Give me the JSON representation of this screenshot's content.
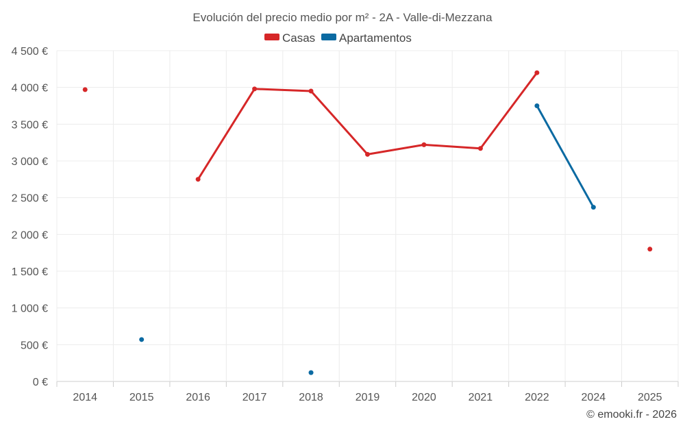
{
  "chart_data": {
    "type": "line",
    "title": "Evolución del precio medio por m² - 2A - Valle-di-Mezzana",
    "categories": [
      "2014",
      "2015",
      "2016",
      "2017",
      "2018",
      "2019",
      "2020",
      "2021",
      "2022",
      "2024",
      "2025"
    ],
    "y_ticks": [
      "0 €",
      "500 €",
      "1 000 €",
      "1 500 €",
      "2 000 €",
      "2 500 €",
      "3 000 €",
      "3 500 €",
      "4 000 €",
      "4 500 €"
    ],
    "ylim": [
      0,
      4500
    ],
    "grid": true,
    "legend_position": "top-center",
    "series": [
      {
        "name": "Casas",
        "color": "#d62728",
        "values": [
          3970,
          null,
          2750,
          3980,
          3950,
          3090,
          3220,
          3170,
          4200,
          null,
          1800
        ]
      },
      {
        "name": "Apartamentos",
        "color": "#0b6aa2",
        "values": [
          null,
          570,
          null,
          null,
          120,
          null,
          null,
          null,
          3750,
          2370,
          null
        ]
      }
    ],
    "credit": "© emooki.fr - 2026"
  }
}
